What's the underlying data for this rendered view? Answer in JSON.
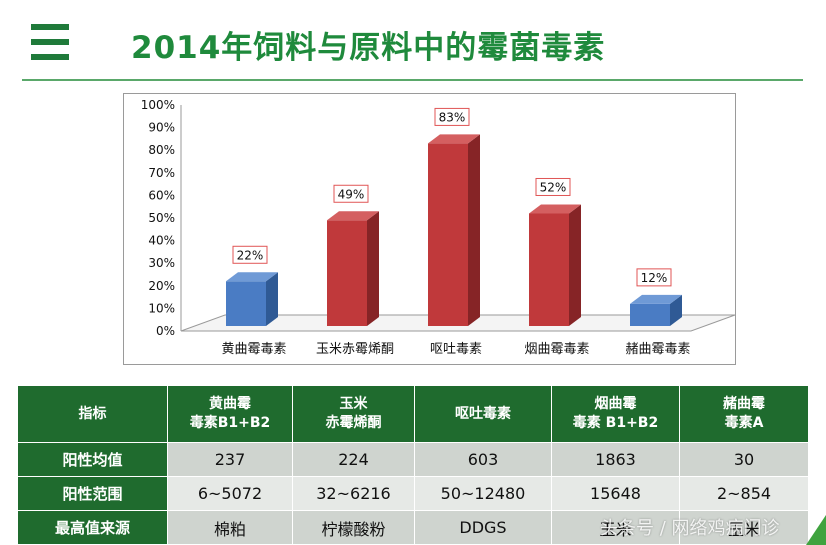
{
  "header": {
    "title": "2014年饲料与原料中的霉菌毒素",
    "menu_icon": "menu-icon"
  },
  "colors": {
    "accent": "#1f8a3c",
    "table_header": "#1f6b2e",
    "bar_blue": "#4a7cc4",
    "bar_red": "#c0393b"
  },
  "chart_data": {
    "type": "bar",
    "categories": [
      "黄曲霉毒素",
      "玉米赤霉烯酮",
      "呕吐毒素",
      "烟曲霉毒素",
      "赭曲霉毒素"
    ],
    "values": [
      22,
      49,
      83,
      52,
      12
    ],
    "value_labels": [
      "22%",
      "49%",
      "83%",
      "52%",
      "12%"
    ],
    "bar_colors": [
      "blue",
      "red",
      "red",
      "red",
      "blue"
    ],
    "ylim": [
      0,
      100
    ],
    "yticks": [
      "0%",
      "10%",
      "20%",
      "30%",
      "40%",
      "50%",
      "60%",
      "70%",
      "80%",
      "90%",
      "100%"
    ],
    "grid": false,
    "style": "3d"
  },
  "table": {
    "header_label": "指标",
    "columns": [
      {
        "line1": "黄曲霉",
        "line2": "毒素B1+B2"
      },
      {
        "line1": "玉米",
        "line2": "赤霉烯酮"
      },
      {
        "line1": "呕吐毒素",
        "line2": ""
      },
      {
        "line1": "烟曲霉",
        "line2": "毒素 B1+B2"
      },
      {
        "line1": "赭曲霉",
        "line2": "毒素A"
      }
    ],
    "rows": [
      {
        "label": "阳性均值",
        "cells": [
          "237",
          "224",
          "603",
          "1863",
          "30"
        ]
      },
      {
        "label": "阳性范围",
        "cells": [
          "6~5072",
          "32~6216",
          "50~12480",
          "15648",
          "2~854"
        ]
      },
      {
        "label": "最高值来源",
        "cells": [
          "棉粕",
          "柠檬酸粉",
          "DDGS",
          "玉米",
          "玉米"
        ]
      }
    ]
  },
  "watermark": "头条号 / 网络鸡病门诊"
}
